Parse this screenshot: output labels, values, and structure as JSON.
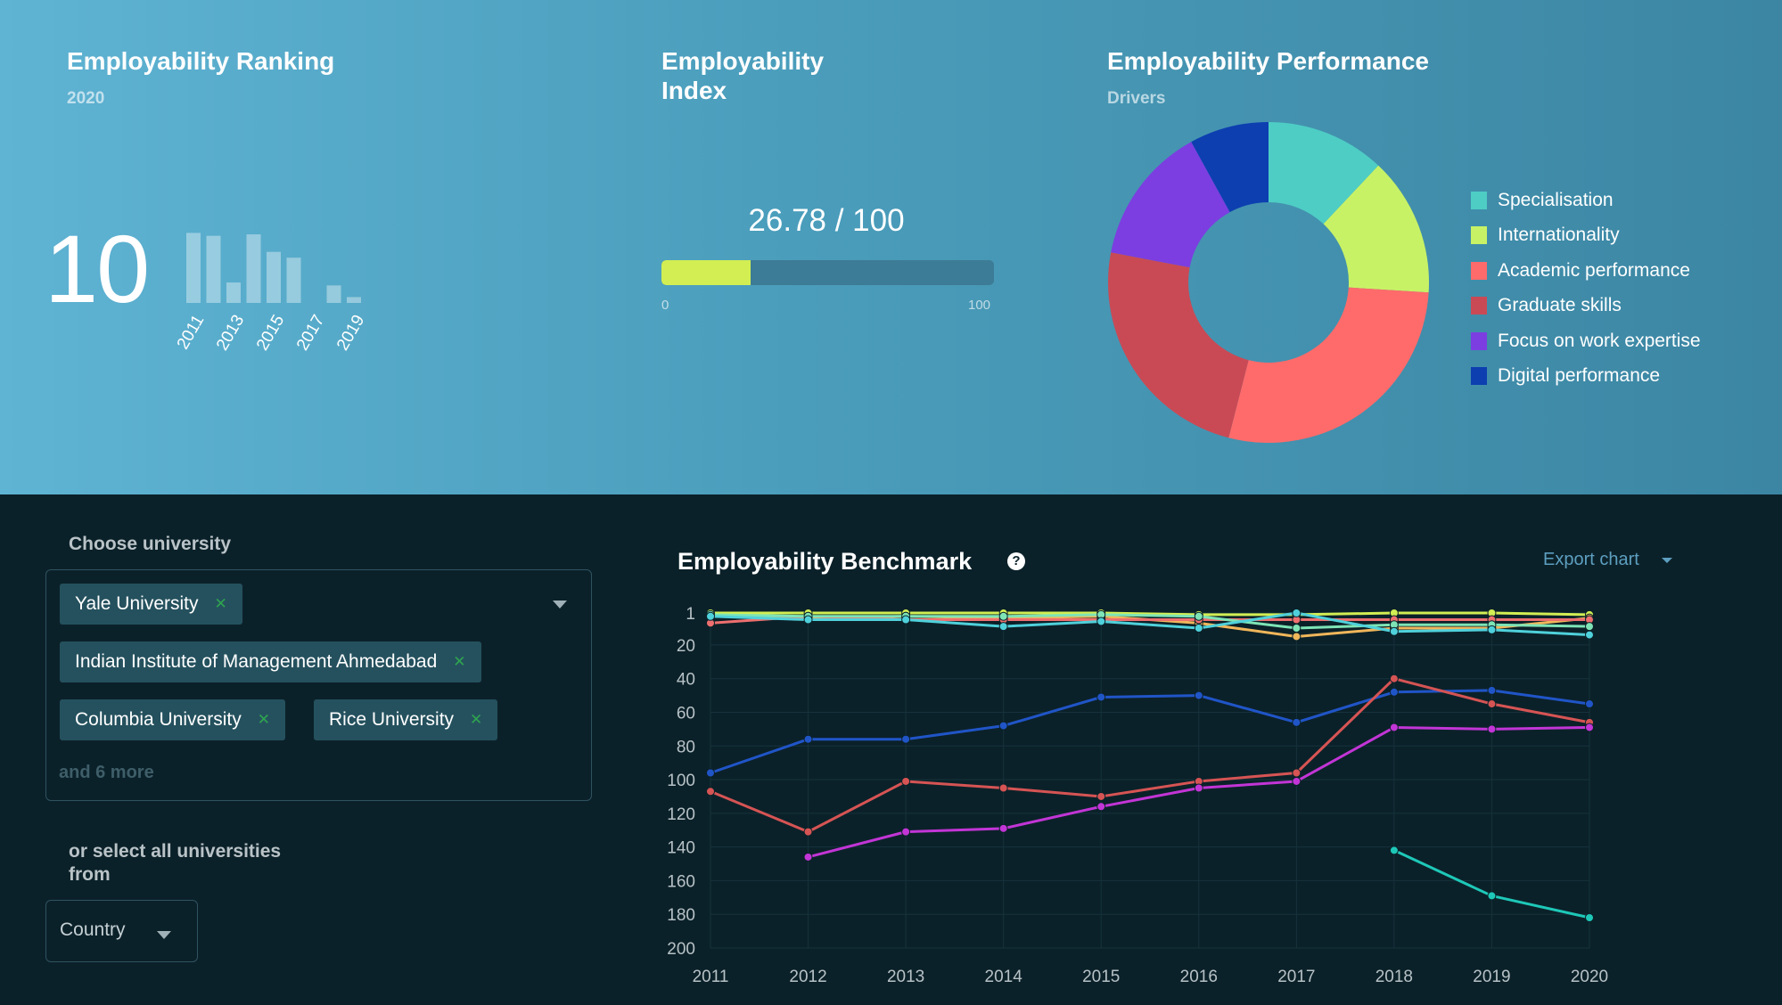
{
  "ranking": {
    "title": "Employability Ranking",
    "year": "2020",
    "value": "10",
    "history": [
      {
        "year": "2011",
        "rank": 22
      },
      {
        "year": "2012",
        "rank": 24
      },
      {
        "year": "2013",
        "rank": 56
      },
      {
        "year": "2014",
        "rank": 23
      },
      {
        "year": "2015",
        "rank": 35
      },
      {
        "year": "2016",
        "rank": 39
      },
      {
        "year": "2017",
        "rank": null
      },
      {
        "year": "2018",
        "rank": 58
      },
      {
        "year": "2019",
        "rank": 66
      }
    ],
    "tick_labels": [
      "2011",
      "2013",
      "2015",
      "2017",
      "2019"
    ]
  },
  "index": {
    "title_line1": "Employability",
    "title_line2": "Index",
    "value_text": "26.78 / 100",
    "value": 26.78,
    "min_label": "0",
    "max_label": "100",
    "fill_color": "#d2ee53"
  },
  "performance": {
    "title": "Employability Performance",
    "subtitle": "Drivers",
    "slices": [
      {
        "label": "Specialisation",
        "value": 12,
        "color": "#4ecdc4"
      },
      {
        "label": "Internationality",
        "value": 14,
        "color": "#c8f266"
      },
      {
        "label": "Academic performance",
        "value": 28,
        "color": "#ff6b6b"
      },
      {
        "label": "Graduate skills",
        "value": 24,
        "color": "#c94a55"
      },
      {
        "label": "Focus on work expertise",
        "value": 14,
        "color": "#7c3ee0"
      },
      {
        "label": "Digital performance",
        "value": 8,
        "color": "#0d3fb0"
      }
    ]
  },
  "filters": {
    "choose_label": "Choose university",
    "selected": [
      "Yale University",
      "Indian Institute of Management Ahmedabad",
      "Columbia University",
      "Rice University"
    ],
    "more_text": "and 6 more",
    "select_all_line1": "or select all universities",
    "select_all_line2": "from",
    "country_label": "Country"
  },
  "benchmark": {
    "title": "Employability Benchmark",
    "help": "?",
    "export": "Export chart"
  },
  "chart_data": {
    "type": "line",
    "title": "Employability Benchmark",
    "x": [
      "2011",
      "2012",
      "2013",
      "2014",
      "2015",
      "2016",
      "2017",
      "2018",
      "2019",
      "2020"
    ],
    "y_ticks": [
      1,
      20,
      40,
      60,
      80,
      100,
      120,
      140,
      160,
      180,
      200
    ],
    "ylim": [
      1,
      200
    ],
    "y_inverted": true,
    "grid": true,
    "series": [
      {
        "color": "#d2ee53",
        "values": [
          1,
          1,
          1,
          1,
          1,
          2,
          2,
          1,
          1,
          2
        ]
      },
      {
        "color": "#f0b65a",
        "values": [
          3,
          4,
          3,
          4,
          3,
          7,
          15,
          10,
          10,
          4
        ]
      },
      {
        "color": "#ee6f6f",
        "values": [
          7,
          3,
          5,
          5,
          5,
          5,
          5,
          5,
          5,
          5
        ]
      },
      {
        "color": "#7ee4b6",
        "values": [
          2,
          3,
          3,
          3,
          2,
          3,
          10,
          8,
          8,
          9
        ]
      },
      {
        "color": "#4fd1db",
        "values": [
          3,
          5,
          5,
          9,
          6,
          10,
          1,
          12,
          11,
          14
        ]
      },
      {
        "color": "#2055c8",
        "values": [
          96,
          76,
          76,
          68,
          51,
          50,
          66,
          48,
          47,
          55
        ]
      },
      {
        "color": "#d65454",
        "values": [
          107,
          131,
          101,
          105,
          110,
          101,
          96,
          40,
          55,
          66
        ]
      },
      {
        "color": "#c235d6",
        "values": [
          null,
          146,
          131,
          129,
          116,
          105,
          101,
          69,
          70,
          69
        ]
      },
      {
        "color": "#1ec8b8",
        "values": [
          null,
          null,
          null,
          null,
          null,
          null,
          null,
          142,
          169,
          182
        ]
      }
    ]
  }
}
